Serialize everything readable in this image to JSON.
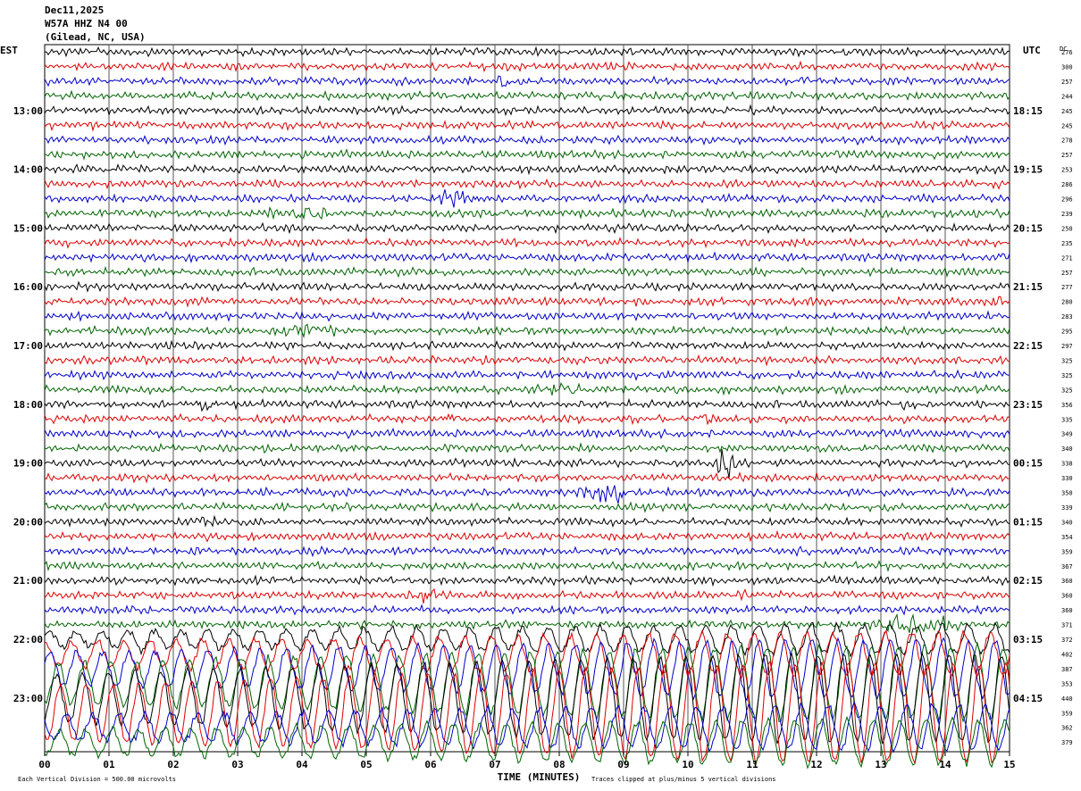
{
  "header": {
    "date": "Dec11,2025",
    "station": "W57A HHZ N4 00",
    "location": "(Gilead, NC, USA)"
  },
  "chart_data": {
    "type": "line",
    "title": "W57A HHZ N4 00",
    "left_axis_label": "EST",
    "right_axis_label": "UTC",
    "dc_label": "DC",
    "xlabel": "TIME (MINUTES)",
    "x_ticks": [
      "00",
      "01",
      "02",
      "03",
      "04",
      "05",
      "06",
      "07",
      "08",
      "09",
      "10",
      "11",
      "12",
      "13",
      "14",
      "15"
    ],
    "xlim": [
      0,
      15
    ],
    "left_hour_labels": [
      {
        "row": 4,
        "label": "13:00"
      },
      {
        "row": 8,
        "label": "14:00"
      },
      {
        "row": 12,
        "label": "15:00"
      },
      {
        "row": 16,
        "label": "16:00"
      },
      {
        "row": 20,
        "label": "17:00"
      },
      {
        "row": 24,
        "label": "18:00"
      },
      {
        "row": 28,
        "label": "19:00"
      },
      {
        "row": 32,
        "label": "20:00"
      },
      {
        "row": 36,
        "label": "21:00"
      },
      {
        "row": 40,
        "label": "22:00"
      },
      {
        "row": 44,
        "label": "23:00"
      }
    ],
    "right_hour_labels": [
      {
        "row": 4,
        "label": "18:15"
      },
      {
        "row": 8,
        "label": "19:15"
      },
      {
        "row": 12,
        "label": "20:15"
      },
      {
        "row": 16,
        "label": "21:15"
      },
      {
        "row": 20,
        "label": "22:15"
      },
      {
        "row": 24,
        "label": "23:15"
      },
      {
        "row": 28,
        "label": "00:15"
      },
      {
        "row": 32,
        "label": "01:15"
      },
      {
        "row": 36,
        "label": "02:15"
      },
      {
        "row": 40,
        "label": "03:15"
      },
      {
        "row": 44,
        "label": "04:15"
      }
    ],
    "dc_offsets": [
      "276",
      "300",
      "257",
      "244",
      "245",
      "245",
      "278",
      "257",
      "253",
      "286",
      "296",
      "239",
      "250",
      "235",
      "271",
      "257",
      "277",
      "280",
      "283",
      "295",
      "297",
      "325",
      "325",
      "325",
      "356",
      "335",
      "349",
      "340",
      "338",
      "330",
      "350",
      "339",
      "340",
      "354",
      "359",
      "367",
      "360",
      "360",
      "360",
      "371",
      "372",
      "402",
      "387",
      "353",
      "440",
      "359",
      "362",
      "379"
    ],
    "trace_colors": [
      "#000000",
      "#dd0000",
      "#0000cc",
      "#006400"
    ],
    "events": [
      {
        "row": 1,
        "start": 6.0,
        "end": 6.2,
        "amp": 1.4
      },
      {
        "row": 2,
        "start": 7.0,
        "end": 7.3,
        "amp": 1.8
      },
      {
        "row": 10,
        "start": 5.8,
        "end": 7.2,
        "amp": 2.0
      },
      {
        "row": 11,
        "start": 3.4,
        "end": 5.0,
        "amp": 1.6
      },
      {
        "row": 14,
        "start": 14.8,
        "end": 15.0,
        "amp": 2.2
      },
      {
        "row": 17,
        "start": 14.7,
        "end": 15.0,
        "amp": 1.4
      },
      {
        "row": 19,
        "start": 3.5,
        "end": 5.0,
        "amp": 1.8
      },
      {
        "row": 23,
        "start": 7.6,
        "end": 8.7,
        "amp": 1.8
      },
      {
        "row": 24,
        "start": 2.3,
        "end": 2.8,
        "amp": 2.0
      },
      {
        "row": 24,
        "start": 13.3,
        "end": 13.6,
        "amp": 2.0
      },
      {
        "row": 25,
        "start": 6.2,
        "end": 6.6,
        "amp": 2.0
      },
      {
        "row": 25,
        "start": 10.1,
        "end": 10.6,
        "amp": 1.8
      },
      {
        "row": 28,
        "start": 10.4,
        "end": 10.9,
        "amp": 5.0
      },
      {
        "row": 30,
        "start": 8.2,
        "end": 9.5,
        "amp": 2.6
      },
      {
        "row": 32,
        "start": 2.3,
        "end": 3.0,
        "amp": 1.4
      },
      {
        "row": 37,
        "start": 5.6,
        "end": 6.6,
        "amp": 1.6
      },
      {
        "row": 37,
        "start": 10.5,
        "end": 11.2,
        "amp": 1.6
      },
      {
        "row": 39,
        "start": 12.5,
        "end": 15.0,
        "amp": 2.0
      },
      {
        "row": 40,
        "start": 1.4,
        "end": 1.7,
        "amp": 3.0
      }
    ],
    "surf_rows_start": 40,
    "clip_divisions": 5,
    "footer_left": "Each Vertical Division =  500.00 microvolts",
    "footer_right": "Traces clipped at plus/minus 5 vertical divisions"
  }
}
